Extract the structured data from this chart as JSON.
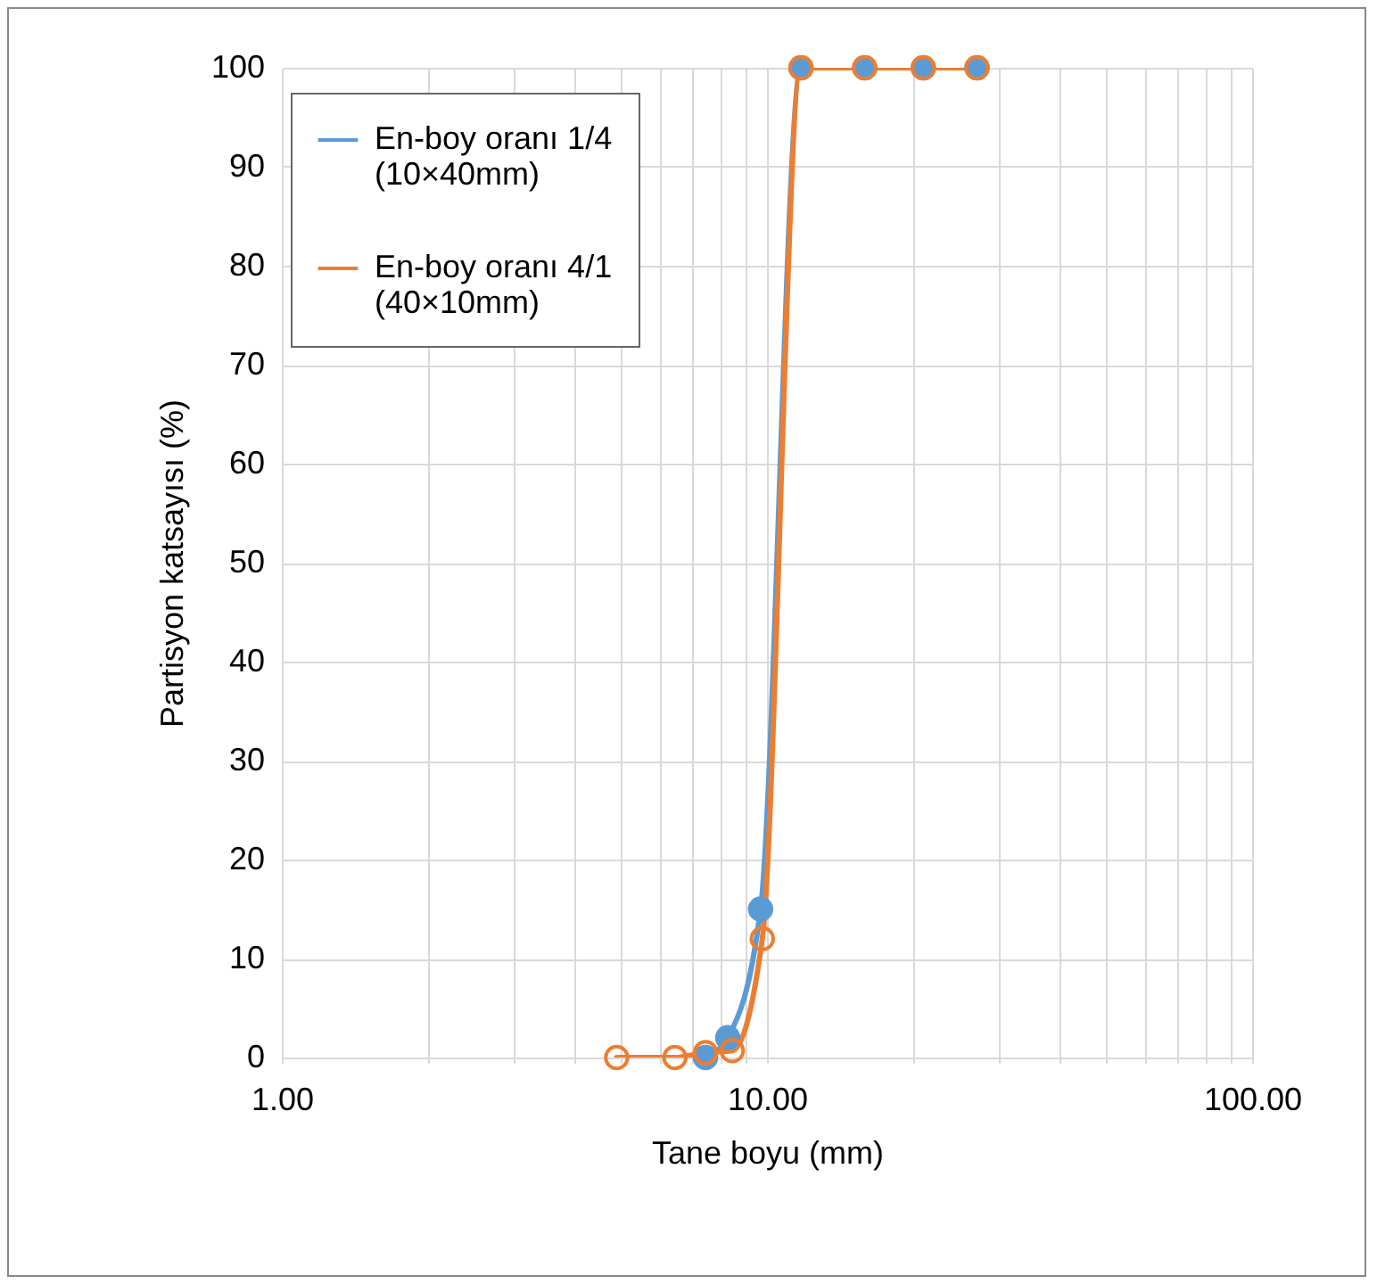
{
  "chart_data": {
    "type": "line",
    "xlabel": "Tane boyu (mm)",
    "ylabel": "Partisyon katsayısı (%)",
    "log": "x",
    "xlim": [
      1,
      100
    ],
    "ylim": [
      0,
      100
    ],
    "xticks": [
      {
        "value": 1,
        "label": "1.00"
      },
      {
        "value": 2,
        "label": null
      },
      {
        "value": 3,
        "label": null
      },
      {
        "value": 4,
        "label": null
      },
      {
        "value": 5,
        "label": null
      },
      {
        "value": 6,
        "label": null
      },
      {
        "value": 7,
        "label": null
      },
      {
        "value": 8,
        "label": null
      },
      {
        "value": 9,
        "label": null
      },
      {
        "value": 10,
        "label": "10.00"
      },
      {
        "value": 20,
        "label": null
      },
      {
        "value": 30,
        "label": null
      },
      {
        "value": 40,
        "label": null
      },
      {
        "value": 50,
        "label": null
      },
      {
        "value": 60,
        "label": null
      },
      {
        "value": 70,
        "label": null
      },
      {
        "value": 80,
        "label": null
      },
      {
        "value": 90,
        "label": null
      },
      {
        "value": 100,
        "label": "100.00"
      }
    ],
    "yticks": [
      0,
      10,
      20,
      30,
      40,
      50,
      60,
      70,
      80,
      90,
      100
    ],
    "grid": true,
    "legend": "top left",
    "marker": "circle",
    "line_style": "solid",
    "series": [
      {
        "name": "En-boy oranı 1/4 (10×40mm)",
        "color": "#5b9bd5",
        "x": [
          7.47,
          8.3,
          9.7,
          11.75,
          15.9,
          21,
          27.1
        ],
        "values": [
          0,
          2,
          15,
          100,
          100,
          100,
          100
        ]
      },
      {
        "name": "En-boy oranı 4/1 (40×10mm)",
        "color": "#ed7d31",
        "x": [
          4.9,
          6.46,
          7.47,
          8.48,
          9.78,
          11.75,
          15.9,
          21,
          27.1
        ],
        "values": [
          0,
          0,
          0.5,
          0.7,
          12,
          100,
          100,
          100,
          100
        ]
      }
    ]
  }
}
